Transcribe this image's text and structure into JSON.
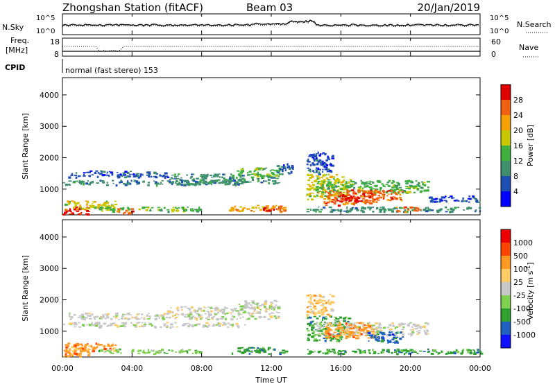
{
  "header": {
    "station": "Zhongshan Station (fitACF)",
    "beam": "Beam 03",
    "date": "20/Jan/2019"
  },
  "top_panel": {
    "left_label": "N.Sky",
    "right_label": "N.Search",
    "left_ticks": [
      "10^5",
      "10^0"
    ],
    "right_ticks": [
      "10^5",
      "10^0"
    ]
  },
  "freq_panel": {
    "left_label_1": "Freq.",
    "left_label_2": "[MHz]",
    "right_label": "Nave",
    "left_ticks": [
      "18",
      "8"
    ],
    "right_ticks": [
      "60",
      "0"
    ]
  },
  "cpid": {
    "label": "CPID",
    "text": "normal (fast stereo) 153"
  },
  "x_axis": {
    "title": "Time UT",
    "ticks": [
      "00:00",
      "04:00",
      "08:00",
      "12:00",
      "16:00",
      "20:00",
      "00:00"
    ]
  },
  "colors": {
    "power": [
      "#0000ff",
      "#1f4fb5",
      "#3f8f6f",
      "#3faf3f",
      "#c8c800",
      "#f5a000",
      "#f06010",
      "#e00000"
    ],
    "velocity": [
      "#ee0000",
      "#ff4400",
      "#ff9922",
      "#ffcc66",
      "#c8c8c8",
      "#80d050",
      "#30a030",
      "#2060c0",
      "#1010ff"
    ]
  },
  "chart_data": [
    {
      "type": "heatmap",
      "ylabel": "Slant Range [km]",
      "xlabel": "",
      "y_ticks": [
        "1000",
        "2000",
        "3000",
        "4000"
      ],
      "ylim": [
        180,
        4550
      ],
      "xlim": [
        0,
        24
      ],
      "colorbar": {
        "label": "Power [dB]",
        "ticks": [
          "4",
          "8",
          "12",
          "16",
          "20",
          "24",
          "28"
        ],
        "range": [
          0,
          32
        ]
      },
      "regions": [
        {
          "t0": 0.0,
          "t1": 1.5,
          "r0": 200,
          "r1": 450,
          "level": 7
        },
        {
          "t0": 0.1,
          "t1": 3.0,
          "r0": 380,
          "r1": 650,
          "level": 4
        },
        {
          "t0": 0.0,
          "t1": 10.5,
          "r0": 1150,
          "r1": 1300,
          "level": 2
        },
        {
          "t0": 0.3,
          "t1": 6.0,
          "r0": 1400,
          "r1": 1600,
          "level": 1
        },
        {
          "t0": 2.0,
          "t1": 8.0,
          "r0": 300,
          "r1": 450,
          "level": 3
        },
        {
          "t0": 3.0,
          "t1": 4.0,
          "r0": 250,
          "r1": 420,
          "level": 6
        },
        {
          "t0": 6.0,
          "t1": 12.5,
          "r0": 1200,
          "r1": 1500,
          "level": 2
        },
        {
          "t0": 10.0,
          "t1": 12.5,
          "r0": 1400,
          "r1": 1700,
          "level": 3
        },
        {
          "t0": 12.3,
          "t1": 13.2,
          "r0": 1500,
          "r1": 1900,
          "level": 1
        },
        {
          "t0": 9.5,
          "t1": 12.8,
          "r0": 300,
          "r1": 500,
          "level": 5
        },
        {
          "t0": 11.5,
          "t1": 12.5,
          "r0": 300,
          "r1": 450,
          "level": 7
        },
        {
          "t0": 14.0,
          "t1": 16.5,
          "r0": 700,
          "r1": 1500,
          "level": 4
        },
        {
          "t0": 14.5,
          "t1": 21.0,
          "r0": 900,
          "r1": 1300,
          "level": 3
        },
        {
          "t0": 15.0,
          "t1": 18.0,
          "r0": 500,
          "r1": 1000,
          "level": 6
        },
        {
          "t0": 16.0,
          "t1": 17.0,
          "r0": 600,
          "r1": 900,
          "level": 7
        },
        {
          "t0": 17.5,
          "t1": 19.5,
          "r0": 650,
          "r1": 1000,
          "level": 6
        },
        {
          "t0": 14.0,
          "t1": 24.0,
          "r0": 300,
          "r1": 450,
          "level": 2
        },
        {
          "t0": 19.0,
          "t1": 20.5,
          "r0": 300,
          "r1": 450,
          "level": 6
        },
        {
          "t0": 14.0,
          "t1": 15.5,
          "r0": 1500,
          "r1": 2200,
          "level": 1
        },
        {
          "t0": 21.0,
          "t1": 24.0,
          "r0": 600,
          "r1": 800,
          "level": 1
        }
      ]
    },
    {
      "type": "heatmap",
      "ylabel": "Slant Range [km]",
      "xlabel": "Time UT",
      "y_ticks": [
        "1000",
        "2000",
        "3000",
        "4000"
      ],
      "ylim": [
        180,
        4550
      ],
      "xlim": [
        0,
        24
      ],
      "colorbar": {
        "label": "Velocity [m s^-1]",
        "ticks": [
          "1000",
          "500",
          "100",
          "25",
          "-25",
          "-100",
          "-500",
          "-1000"
        ]
      },
      "regions": [
        {
          "t0": 0.0,
          "t1": 1.5,
          "r0": 200,
          "r1": 500,
          "level": 2
        },
        {
          "t0": 0.1,
          "t1": 3.0,
          "r0": 380,
          "r1": 650,
          "level": 2
        },
        {
          "t0": 0.0,
          "t1": 10.5,
          "r0": 1150,
          "r1": 1300,
          "level": 4
        },
        {
          "t0": 0.3,
          "t1": 6.0,
          "r0": 1400,
          "r1": 1600,
          "level": 4
        },
        {
          "t0": 2.0,
          "t1": 8.0,
          "r0": 300,
          "r1": 450,
          "level": 5
        },
        {
          "t0": 6.0,
          "t1": 12.5,
          "r0": 1400,
          "r1": 1800,
          "level": 4
        },
        {
          "t0": 10.0,
          "t1": 12.5,
          "r0": 1750,
          "r1": 2000,
          "level": 4
        },
        {
          "t0": 9.5,
          "t1": 12.8,
          "r0": 300,
          "r1": 500,
          "level": 6
        },
        {
          "t0": 14.0,
          "t1": 16.5,
          "r0": 700,
          "r1": 1500,
          "level": 6
        },
        {
          "t0": 14.5,
          "t1": 21.0,
          "r0": 900,
          "r1": 1300,
          "level": 4
        },
        {
          "t0": 15.0,
          "t1": 18.0,
          "r0": 800,
          "r1": 1300,
          "level": 2
        },
        {
          "t0": 17.5,
          "t1": 19.5,
          "r0": 650,
          "r1": 1000,
          "level": 7
        },
        {
          "t0": 14.0,
          "t1": 24.0,
          "r0": 300,
          "r1": 450,
          "level": 6
        },
        {
          "t0": 19.0,
          "t1": 20.5,
          "r0": 300,
          "r1": 450,
          "level": 6
        },
        {
          "t0": 14.0,
          "t1": 15.5,
          "r0": 1500,
          "r1": 2200,
          "level": 3
        }
      ]
    }
  ]
}
